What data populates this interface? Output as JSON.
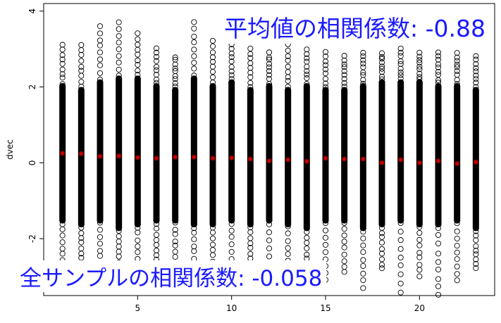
{
  "chart_data": {
    "type": "scatter",
    "ylabel": "dvec",
    "xlabel": "",
    "xlim": [
      0,
      24
    ],
    "ylim": [
      -3.5,
      4.2
    ],
    "xticks": [
      5,
      10,
      15,
      20
    ],
    "yticks": [
      -2,
      0,
      2,
      4
    ],
    "x": [
      1,
      2,
      3,
      4,
      5,
      6,
      7,
      8,
      9,
      10,
      11,
      12,
      13,
      14,
      15,
      16,
      17,
      18,
      19,
      20,
      21,
      22,
      23
    ],
    "means": [
      0.25,
      0.24,
      0.17,
      0.18,
      0.14,
      0.12,
      0.15,
      0.15,
      0.12,
      0.13,
      0.1,
      0.05,
      0.08,
      0.04,
      0.12,
      0.1,
      0.1,
      0.0,
      0.08,
      0.0,
      0.05,
      -0.02,
      0.02
    ],
    "band_low": [
      -1.6,
      -1.7,
      -1.6,
      -1.8,
      -1.7,
      -1.6,
      -1.6,
      -1.7,
      -1.7,
      -1.6,
      -1.7,
      -1.6,
      -1.7,
      -1.8,
      -1.6,
      -1.6,
      -1.8,
      -1.7,
      -1.6,
      -1.7,
      -1.7,
      -1.6,
      -1.8
    ],
    "band_high": [
      2.1,
      2.0,
      2.2,
      2.3,
      2.3,
      2.1,
      2.0,
      2.3,
      2.1,
      2.2,
      2.0,
      2.1,
      2.0,
      2.1,
      2.0,
      2.0,
      2.1,
      2.2,
      2.2,
      2.2,
      2.1,
      2.1,
      2.0
    ],
    "outlier_low": [
      -2.9,
      -2.8,
      -3.0,
      -2.9,
      -3.0,
      -2.7,
      -2.8,
      -3.0,
      -2.9,
      -3.1,
      -2.8,
      -3.3,
      -3.1,
      -3.0,
      -3.1,
      -2.9,
      -3.3,
      -2.8,
      -3.4,
      -3.0,
      -3.5,
      -3.1,
      -2.8
    ],
    "outlier_high": [
      3.1,
      3.1,
      3.6,
      3.7,
      3.4,
      3.0,
      2.8,
      3.7,
      3.2,
      3.1,
      3.0,
      2.9,
      3.1,
      3.0,
      2.9,
      2.8,
      2.9,
      2.9,
      3.0,
      2.9,
      2.9,
      2.9,
      2.8
    ],
    "colors": {
      "points": "#000000",
      "mean_marker": "#cc0000",
      "annotation": "#1a1aff"
    }
  },
  "annotations": {
    "means_correlation": "平均値の相関係数: -0.88",
    "all_samples_correlation": "全サンプルの相関係数: -0.058"
  }
}
